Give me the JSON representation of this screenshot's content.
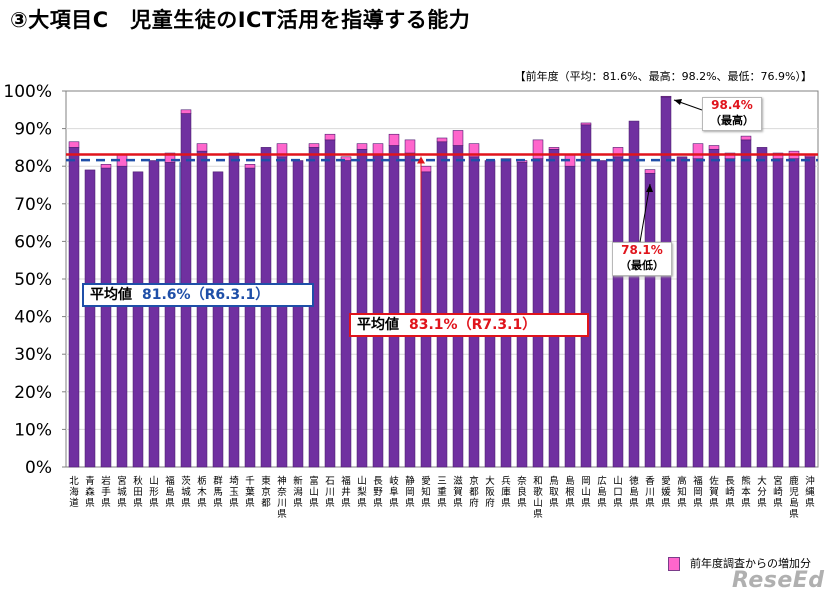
{
  "title": "③大項目C　児童生徒のICT活用を指導する能力",
  "prev_year_note": "【前年度（平均：81.6%、最高：98.2%、最低：76.9%）】",
  "colors": {
    "bar": "#7030a0",
    "increase": "#ff66cc",
    "avg_current": "#e0141c",
    "avg_prev": "#1f4fa8"
  },
  "chart_data": {
    "type": "bar",
    "ylim": [
      0,
      100
    ],
    "yticks": [
      "0%",
      "10%",
      "20%",
      "30%",
      "40%",
      "50%",
      "60%",
      "70%",
      "80%",
      "90%",
      "100%"
    ],
    "categories": [
      "北海道",
      "青森県",
      "岩手県",
      "宮城県",
      "秋田県",
      "山形県",
      "福島県",
      "茨城県",
      "栃木県",
      "群馬県",
      "埼玉県",
      "千葉県",
      "東京都",
      "神奈川県",
      "新潟県",
      "富山県",
      "石川県",
      "福井県",
      "山梨県",
      "長野県",
      "岐阜県",
      "静岡県",
      "愛知県",
      "三重県",
      "滋賀県",
      "京都府",
      "大阪府",
      "兵庫県",
      "奈良県",
      "和歌山県",
      "鳥取県",
      "島根県",
      "岡山県",
      "広島県",
      "山口県",
      "徳島県",
      "香川県",
      "愛媛県",
      "高知県",
      "福岡県",
      "佐賀県",
      "長崎県",
      "熊本県",
      "大分県",
      "宮崎県",
      "鹿児島県",
      "沖縄県"
    ],
    "series": [
      {
        "name": "",
        "values": [
          85,
          79,
          79.5,
          80,
          78.5,
          81.5,
          81,
          94,
          84,
          78.5,
          83.5,
          79.5,
          85,
          82.5,
          81.5,
          85,
          87,
          81.5,
          84.5,
          83,
          85.5,
          83.5,
          78.5,
          86.5,
          85.5,
          82.5,
          81.5,
          82,
          81,
          82,
          84.5,
          80,
          91,
          81.5,
          82.5,
          92,
          78.1,
          98.4,
          82.5,
          82,
          84.5,
          82,
          87,
          85,
          82,
          82,
          82.5
        ]
      },
      {
        "name": "前年度調査からの増加分",
        "values": [
          1.5,
          0,
          1,
          3,
          0,
          0,
          2.5,
          1,
          2,
          0,
          0,
          1,
          0,
          3.5,
          0,
          1,
          1.5,
          1,
          1.5,
          3,
          3,
          3.5,
          1.5,
          1,
          4,
          3.5,
          0,
          0,
          0.5,
          5,
          0.5,
          3,
          0.5,
          0,
          2.5,
          0,
          1,
          0.2,
          0,
          4,
          1,
          1.5,
          1,
          0,
          1.5,
          2,
          0.5
        ]
      }
    ],
    "averages": [
      {
        "label": "平均値",
        "value_text": "81.6%（R6.3.1）",
        "value": 81.6
      },
      {
        "label": "平均値",
        "value_text": "83.1%（R7.3.1）",
        "value": 83.1
      }
    ],
    "annotations": [
      {
        "value_text": "98.4%",
        "label": "（最高）",
        "category": "愛媛県"
      },
      {
        "value_text": "78.1%",
        "label": "（最低）",
        "category": "香川県"
      }
    ]
  },
  "legend_label": "前年度調査からの増加分",
  "logo_text": "ReseEd"
}
